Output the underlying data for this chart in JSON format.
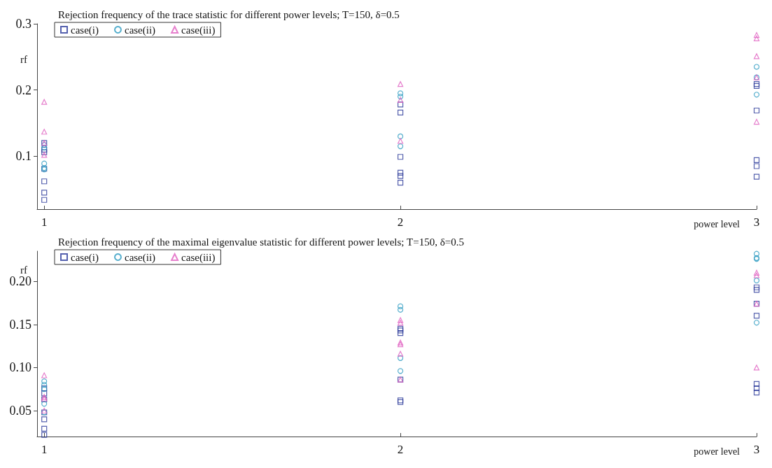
{
  "chart_data": [
    {
      "type": "scatter",
      "title": "Rejection frequency of the trace statistic for different power levels; T=150, δ=0.5",
      "xlabel": "power level",
      "ylabel": "rf",
      "xlim": [
        0.98,
        3
      ],
      "xticks": [
        1,
        2,
        3
      ],
      "ylim": [
        0.02,
        0.3
      ],
      "yticks": [
        0.1,
        0.2,
        0.3
      ],
      "grid": false,
      "legend": "top left",
      "series": [
        {
          "name": "case(i)",
          "color": "#2b3a9a",
          "marker": "square",
          "x": [
            1,
            1,
            1,
            1,
            1,
            1,
            1,
            2,
            2,
            2,
            2,
            2,
            2,
            3,
            3,
            3,
            3,
            3,
            3
          ],
          "values": [
            0.12,
            0.11,
            0.106,
            0.081,
            0.062,
            0.045,
            0.034,
            0.178,
            0.166,
            0.099,
            0.075,
            0.07,
            0.06,
            0.209,
            0.206,
            0.169,
            0.094,
            0.085,
            0.069
          ]
        },
        {
          "name": "case(ii)",
          "color": "#2a9ac0",
          "marker": "circle",
          "x": [
            1,
            1,
            1,
            1,
            1,
            2,
            2,
            2,
            2,
            3,
            3,
            3
          ],
          "values": [
            0.117,
            0.113,
            0.089,
            0.082,
            0.08,
            0.195,
            0.19,
            0.13,
            0.115,
            0.235,
            0.219,
            0.193
          ]
        },
        {
          "name": "case(iii)",
          "color": "#e060c0",
          "marker": "triangle",
          "x": [
            1,
            1,
            1,
            1,
            2,
            2,
            2,
            3,
            3,
            3,
            3,
            3
          ],
          "values": [
            0.182,
            0.137,
            0.12,
            0.102,
            0.209,
            0.185,
            0.123,
            0.283,
            0.278,
            0.251,
            0.219,
            0.152
          ]
        }
      ]
    },
    {
      "type": "scatter",
      "title": "Rejection frequency of the maximal eigenvalue statistic for different power levels; T=150, δ=0.5",
      "xlabel": "power level",
      "ylabel": "rf",
      "xlim": [
        0.98,
        3
      ],
      "xticks": [
        1,
        2,
        3
      ],
      "ylim": [
        0.02,
        0.235
      ],
      "yticks": [
        0.05,
        {
          "value": 0.1,
          "label": "0.10"
        },
        0.15,
        {
          "value": 0.2,
          "label": "0.20"
        }
      ],
      "grid": false,
      "legend": "top left",
      "series": [
        {
          "name": "case(i)",
          "color": "#2b3a9a",
          "marker": "square",
          "x": [
            1,
            1,
            1,
            1,
            1,
            1,
            1,
            2,
            2,
            2,
            2,
            2,
            2,
            3,
            3,
            3,
            3,
            3,
            3,
            3
          ],
          "values": [
            0.076,
            0.07,
            0.063,
            0.048,
            0.04,
            0.029,
            0.022,
            0.145,
            0.143,
            0.14,
            0.086,
            0.062,
            0.06,
            0.193,
            0.19,
            0.174,
            0.16,
            0.081,
            0.076,
            0.071
          ]
        },
        {
          "name": "case(ii)",
          "color": "#2a9ac0",
          "marker": "circle",
          "x": [
            1,
            1,
            1,
            1,
            1,
            2,
            2,
            2,
            2,
            3,
            3,
            3,
            3,
            3
          ],
          "values": [
            0.084,
            0.08,
            0.075,
            0.058,
            0.048,
            0.171,
            0.167,
            0.111,
            0.096,
            0.232,
            0.227,
            0.226,
            0.201,
            0.152
          ]
        },
        {
          "name": "case(iii)",
          "color": "#e060c0",
          "marker": "triangle",
          "x": [
            1,
            1,
            1,
            1,
            2,
            2,
            2,
            2,
            2,
            2,
            3,
            3,
            3,
            3
          ],
          "values": [
            0.091,
            0.066,
            0.064,
            0.05,
            0.155,
            0.152,
            0.129,
            0.127,
            0.116,
            0.086,
            0.21,
            0.207,
            0.174,
            0.1
          ]
        }
      ]
    }
  ]
}
